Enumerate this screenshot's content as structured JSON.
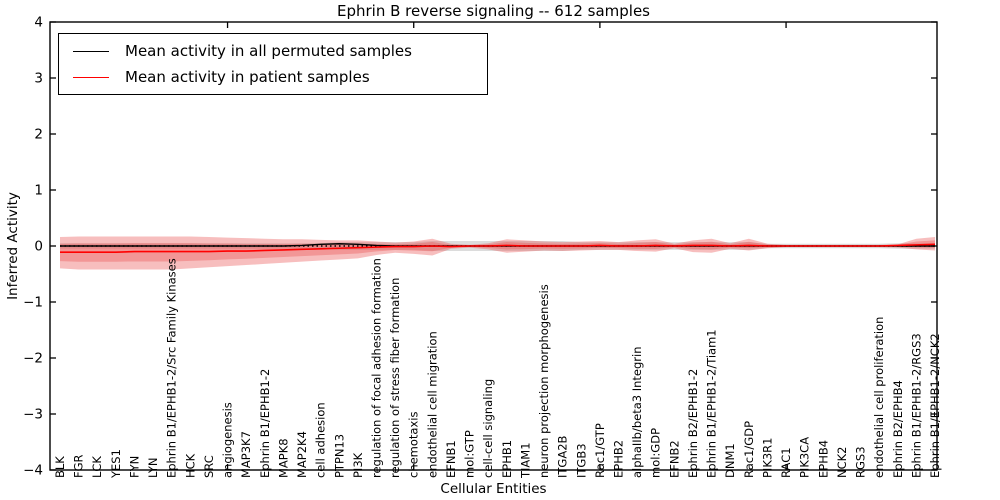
{
  "figure": {
    "title": "Ephrin B reverse signaling -- 612 samples",
    "xlabel": "Cellular Entities",
    "ylabel": "Inferred Activity"
  },
  "legend": {
    "items": [
      {
        "label": "Mean activity in all permuted samples",
        "color": "#000000"
      },
      {
        "label": "Mean activity in patient samples",
        "color": "#ff0000"
      }
    ]
  },
  "chart_data": {
    "type": "line",
    "title": "Ephrin B reverse signaling -- 612 samples",
    "xlabel": "Cellular Entities",
    "ylabel": "Inferred Activity",
    "ylim": [
      -4,
      4
    ],
    "ytick_values": [
      4,
      3,
      2,
      1,
      0,
      -1,
      -2,
      -3,
      -4
    ],
    "ytick_labels": [
      "4",
      "3",
      "2",
      "1",
      "0",
      "−1",
      "−2",
      "−3",
      "−4"
    ],
    "x_major_tick_indices": [
      9,
      19,
      29,
      39
    ],
    "grid": false,
    "legend_position": "upper left",
    "categories": [
      "BLK",
      "FGR",
      "LCK",
      "YES1",
      "FYN",
      "LYN",
      "Ephrin B1/EPHB1-2/Src Family Kinases",
      "HCK",
      "SRC",
      "angiogenesis",
      "MAP3K7",
      "Ephrin B1/EPHB1-2",
      "MAPK8",
      "MAP2K4",
      "cell adhesion",
      "PTPN13",
      "PI3K",
      "regulation of focal adhesion formation",
      "regulation of stress fiber formation",
      "chemotaxis",
      "endothelial cell migration",
      "EFNB1",
      "mol:GTP",
      "cell-cell signaling",
      "EPHB1",
      "TIAM1",
      "neuron projection morphogenesis",
      "ITGA2B",
      "ITGB3",
      "Rac1/GTP",
      "EPHB2",
      "alphaIIb/beta3 Integrin",
      "mol:GDP",
      "EFNB2",
      "Ephrin B2/EPHB1-2",
      "Ephrin B1/EPHB1-2/Tiam1",
      "DNM1",
      "Rac1/GDP",
      "PIK3R1",
      "RAC1",
      "PIK3CA",
      "EPHB4",
      "NCK2",
      "RGS3",
      "endothelial cell proliferation",
      "Ephrin B2/EPHB4",
      "Ephrin B1/EPHB1-2/RGS3",
      "Ephrin B1/EPHB1-2/NCK2"
    ],
    "series": [
      {
        "name": "Mean activity in all permuted samples",
        "color": "#000000",
        "values": [
          0,
          0,
          0,
          0,
          0,
          0,
          0,
          0,
          0,
          0,
          0,
          0,
          0,
          0.01,
          0.03,
          0.04,
          0.03,
          0.01,
          0,
          0,
          0,
          0,
          0,
          0,
          0,
          0,
          0,
          0,
          0,
          0,
          0,
          0,
          0,
          0,
          0,
          0,
          0,
          0,
          0,
          0,
          0,
          0,
          0,
          0,
          0,
          0,
          0,
          0
        ]
      },
      {
        "name": "Mean activity in patient samples",
        "color": "#ff0000",
        "values": [
          -0.11,
          -0.11,
          -0.11,
          -0.11,
          -0.1,
          -0.1,
          -0.1,
          -0.1,
          -0.1,
          -0.09,
          -0.09,
          -0.08,
          -0.07,
          -0.06,
          -0.05,
          -0.04,
          -0.03,
          -0.02,
          -0.01,
          -0.01,
          0,
          -0.01,
          0,
          0,
          0.01,
          0,
          0,
          0,
          0,
          0.01,
          0,
          0,
          0.01,
          0,
          0.01,
          0.01,
          0,
          0.01,
          0,
          0,
          0,
          0,
          0,
          0,
          0,
          0.01,
          0.02,
          0.03
        ]
      }
    ],
    "bands": {
      "patient_outer": {
        "color": "rgba(235,85,85,0.38)",
        "upper": [
          0.16,
          0.17,
          0.17,
          0.17,
          0.17,
          0.17,
          0.17,
          0.17,
          0.16,
          0.15,
          0.14,
          0.13,
          0.12,
          0.12,
          0.11,
          0.1,
          0.1,
          0.08,
          0.06,
          0.08,
          0.13,
          0.04,
          0.02,
          0.05,
          0.12,
          0.1,
          0.08,
          0.07,
          0.08,
          0.09,
          0.07,
          0.1,
          0.12,
          0.04,
          0.1,
          0.13,
          0.05,
          0.13,
          0.04,
          0.02,
          0.02,
          0.02,
          0.02,
          0.02,
          0.02,
          0.03,
          0.13,
          0.16
        ],
        "lower": [
          -0.4,
          -0.42,
          -0.42,
          -0.42,
          -0.42,
          -0.42,
          -0.42,
          -0.4,
          -0.38,
          -0.36,
          -0.34,
          -0.32,
          -0.3,
          -0.28,
          -0.26,
          -0.24,
          -0.22,
          -0.16,
          -0.12,
          -0.14,
          -0.17,
          -0.05,
          -0.03,
          -0.06,
          -0.12,
          -0.1,
          -0.08,
          -0.09,
          -0.08,
          -0.07,
          -0.07,
          -0.09,
          -0.1,
          -0.04,
          -0.11,
          -0.12,
          -0.05,
          -0.08,
          -0.04,
          -0.02,
          -0.02,
          -0.02,
          -0.02,
          -0.02,
          -0.02,
          -0.03,
          -0.06,
          -0.08
        ]
      },
      "patient_inner_factor": 0.55,
      "permuted": {
        "color": "rgba(128,128,128,0.28)",
        "upper": [
          0.05,
          0.05,
          0.05,
          0.05,
          0.05,
          0.05,
          0.05,
          0.05,
          0.05,
          0.05,
          0.05,
          0.05,
          0.05,
          0.05,
          0.05,
          0.07,
          0.07,
          0.07,
          0.07,
          0.07,
          0.09,
          0.09,
          0.09,
          0.09,
          0.09,
          0.09,
          0.09,
          0.09,
          0.07,
          0.07,
          0.07,
          0.07,
          0.07,
          0.07,
          0.07,
          0.07,
          0.07,
          0.07,
          0.04,
          0.04,
          0.04,
          0.04,
          0.04,
          0.04,
          0.04,
          0.05,
          0.05,
          0.05
        ],
        "lower": [
          -0.05,
          -0.05,
          -0.05,
          -0.05,
          -0.05,
          -0.05,
          -0.05,
          -0.05,
          -0.05,
          -0.05,
          -0.05,
          -0.05,
          -0.05,
          -0.05,
          -0.05,
          -0.07,
          -0.07,
          -0.07,
          -0.07,
          -0.07,
          -0.09,
          -0.09,
          -0.09,
          -0.09,
          -0.09,
          -0.09,
          -0.09,
          -0.09,
          -0.07,
          -0.07,
          -0.07,
          -0.07,
          -0.07,
          -0.07,
          -0.07,
          -0.07,
          -0.07,
          -0.07,
          -0.04,
          -0.04,
          -0.04,
          -0.04,
          -0.04,
          -0.04,
          -0.04,
          -0.05,
          -0.05,
          -0.05
        ]
      }
    },
    "zero_line": 0
  }
}
